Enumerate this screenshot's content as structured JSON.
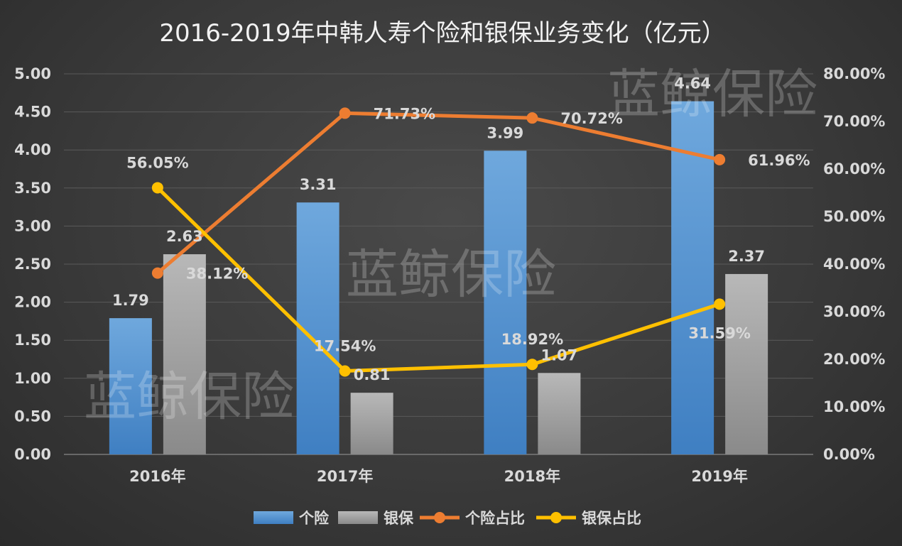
{
  "chart_data": {
    "type": "bar",
    "title": "2016-2019年中韩人寿个险和银保业务变化（亿元）",
    "categories": [
      "2016年",
      "2017年",
      "2018年",
      "2019年"
    ],
    "y_left": {
      "min": 0,
      "max": 5,
      "step": 0.5,
      "ticks": [
        "0.00",
        "0.50",
        "1.00",
        "1.50",
        "2.00",
        "2.50",
        "3.00",
        "3.50",
        "4.00",
        "4.50",
        "5.00"
      ]
    },
    "y_right": {
      "min": 0,
      "max": 80,
      "step": 10,
      "ticks": [
        "0.00%",
        "10.00%",
        "20.00%",
        "30.00%",
        "40.00%",
        "50.00%",
        "60.00%",
        "70.00%",
        "80.00%"
      ]
    },
    "series": [
      {
        "name": "个险",
        "kind": "bar",
        "axis": "left",
        "color": "#5b9bd5",
        "values": [
          1.79,
          3.31,
          3.99,
          4.64
        ],
        "labels": [
          "1.79",
          "3.31",
          "3.99",
          "4.64"
        ]
      },
      {
        "name": "银保",
        "kind": "bar",
        "axis": "left",
        "color": "#a5a5a5",
        "values": [
          2.63,
          0.81,
          1.07,
          2.37
        ],
        "labels": [
          "2.63",
          "0.81",
          "1.07",
          "2.37"
        ]
      },
      {
        "name": "个险占比",
        "kind": "line",
        "axis": "right",
        "color": "#ed7d31",
        "values": [
          38.12,
          71.73,
          70.72,
          61.96
        ],
        "labels": [
          "38.12%",
          "71.73%",
          "70.72%",
          "61.96%"
        ]
      },
      {
        "name": "银保占比",
        "kind": "line",
        "axis": "right",
        "color": "#ffc000",
        "values": [
          56.05,
          17.54,
          18.92,
          31.59
        ],
        "labels": [
          "56.05%",
          "17.54%",
          "18.92%",
          "31.59%"
        ]
      }
    ],
    "grid": true,
    "legend_position": "bottom"
  },
  "watermark": {
    "text": "蓝鲸保险"
  }
}
